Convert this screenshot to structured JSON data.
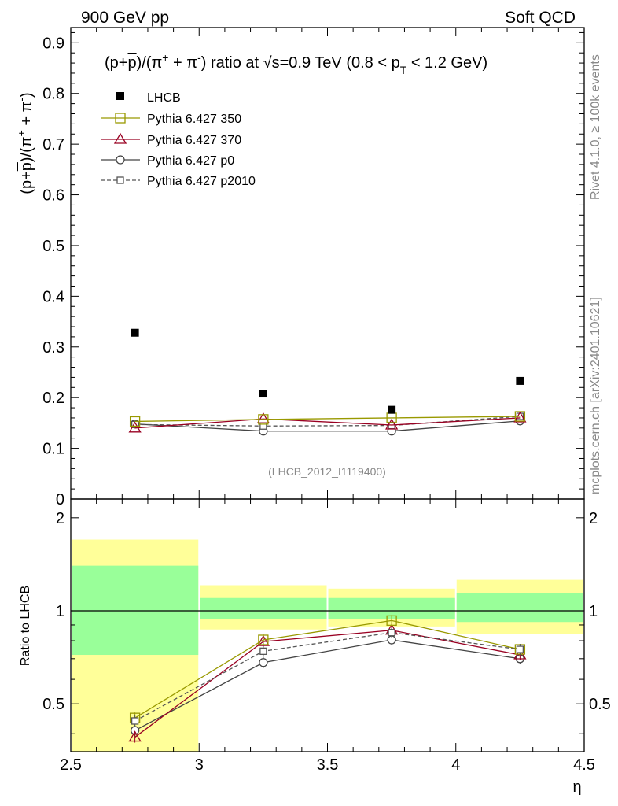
{
  "header": {
    "left": "900 GeV pp",
    "right": "Soft QCD"
  },
  "side_labels": {
    "rivet": "Rivet 4.1.0, ≥ 100k events",
    "mcplots": "mcplots.cern.ch [arXiv:2401.10621]"
  },
  "watermark": "(LHCB_2012_I1119400)",
  "colors": {
    "lhcb": "#000000",
    "py350": "#999900",
    "py370": "#990022",
    "pyp0": "#444444",
    "pyp2010": "#555555",
    "band_yellow": "#ffff99",
    "band_green": "#99ff99"
  },
  "chart_data": [
    {
      "id": "main",
      "type": "scatter",
      "title": "(p+p̅)/(π⁺ + π⁻) ratio at √s=0.9 TeV (0.8 < p_T < 1.2 GeV)",
      "ylabel": "(p+p̅)/(π⁺ + π⁻)",
      "xlim": [
        2.5,
        4.5
      ],
      "ylim": [
        0,
        0.93
      ],
      "yticks": [
        "0",
        "0.1",
        "0.2",
        "0.3",
        "0.4",
        "0.5",
        "0.6",
        "0.7",
        "0.8",
        "0.9"
      ],
      "x": [
        2.75,
        3.25,
        3.75,
        4.25
      ],
      "series": [
        {
          "name": "LHCB",
          "marker": "filled-square",
          "values": [
            0.328,
            0.208,
            0.176,
            0.233
          ]
        },
        {
          "name": "Pythia 6.427 350",
          "marker": "open-square",
          "line": "solid",
          "values": [
            0.153,
            0.157,
            0.16,
            0.163
          ]
        },
        {
          "name": "Pythia 6.427 370",
          "marker": "open-triangle",
          "line": "solid",
          "values": [
            0.14,
            0.158,
            0.146,
            0.16
          ]
        },
        {
          "name": "Pythia 6.427 p0",
          "marker": "open-circle",
          "line": "solid",
          "values": [
            0.148,
            0.134,
            0.134,
            0.154
          ]
        },
        {
          "name": "Pythia 6.427 p2010",
          "marker": "open-small-square",
          "line": "dashed",
          "values": [
            0.147,
            0.144,
            0.145,
            0.163
          ]
        }
      ]
    },
    {
      "id": "ratio",
      "type": "line",
      "ylabel": "Ratio to LHCB",
      "xlabel": "η",
      "xlim": [
        2.5,
        4.5
      ],
      "ylim": [
        0.35,
        2.3
      ],
      "ytick_labels": [
        "0.5",
        "1",
        "2"
      ],
      "xtick_labels": [
        "2.5",
        "3",
        "3.5",
        "4",
        "4.5"
      ],
      "x": [
        2.75,
        3.25,
        3.75,
        4.25
      ],
      "bins": [
        [
          2.5,
          3.0
        ],
        [
          3.0,
          3.5
        ],
        [
          3.5,
          4.0
        ],
        [
          4.0,
          4.5
        ]
      ],
      "band_yellow": [
        [
          0.35,
          1.7
        ],
        [
          0.87,
          1.21
        ],
        [
          0.89,
          1.18
        ],
        [
          0.84,
          1.26
        ]
      ],
      "band_green": [
        [
          0.72,
          1.4
        ],
        [
          0.94,
          1.1
        ],
        [
          0.94,
          1.1
        ],
        [
          0.92,
          1.14
        ]
      ],
      "series": [
        {
          "name": "Pythia 6.427 350",
          "values": [
            0.45,
            0.805,
            0.93,
            0.75
          ]
        },
        {
          "name": "Pythia 6.427 370",
          "values": [
            0.39,
            0.795,
            0.865,
            0.72
          ]
        },
        {
          "name": "Pythia 6.427 p0",
          "values": [
            0.41,
            0.68,
            0.805,
            0.7
          ]
        },
        {
          "name": "Pythia 6.427 p2010",
          "values": [
            0.44,
            0.74,
            0.85,
            0.75
          ]
        }
      ]
    }
  ]
}
